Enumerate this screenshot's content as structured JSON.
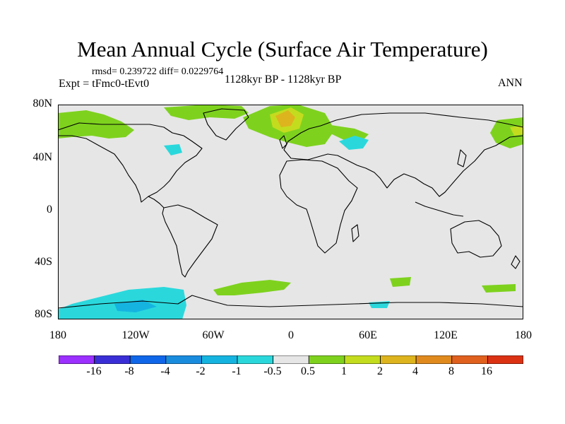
{
  "figure": {
    "title": "Mean Annual Cycle (Surface Air Temperature)",
    "stats_label": "rmsd= 0.239722 diff= 0.0229764",
    "experiment_label": "Expt = tFmc0-tEvt0",
    "period_label": "1128kyr BP - 1128kyr BP",
    "season_label": "ANN"
  },
  "map": {
    "background_color": "#e6e6e6",
    "lat_labels": [
      "80N",
      "40N",
      "0",
      "40S",
      "80S"
    ],
    "lon_labels": [
      "180",
      "120W",
      "60W",
      "0",
      "60E",
      "120E",
      "180"
    ],
    "anomaly_regions": [
      {
        "name": "alaska-yukon",
        "level": 1
      },
      {
        "name": "chukotka-bering",
        "level": 1
      },
      {
        "name": "greenland",
        "level": 1
      },
      {
        "name": "scandinavia-barents",
        "level": 1
      },
      {
        "name": "scandinavia-core",
        "level": 2
      },
      {
        "name": "scandinavia-peak",
        "level": 4
      },
      {
        "name": "siberia-west",
        "level": 1
      },
      {
        "name": "eastern-siberia",
        "level": 1
      },
      {
        "name": "eastern-siberia-core",
        "level": 2
      },
      {
        "name": "caspian-central-asia",
        "level": -1
      },
      {
        "name": "hudson-bay",
        "level": -1
      },
      {
        "name": "southern-ocean-atlantic",
        "level": 1
      },
      {
        "name": "southern-ocean-indian",
        "level": 1
      },
      {
        "name": "ross-amundsen-sea",
        "level": -1
      },
      {
        "name": "ross-sea-core",
        "level": -2
      },
      {
        "name": "weddell-coast",
        "level": -1
      }
    ]
  },
  "colorbar": {
    "colors": [
      "#9b30ff",
      "#3a2fd6",
      "#0f66e8",
      "#1a8cde",
      "#15b4e0",
      "#2ad8dc",
      "#e6e6e6",
      "#7ed21e",
      "#c4dc1e",
      "#ddb41e",
      "#e08a1e",
      "#e0601e",
      "#dc3214"
    ],
    "labels": [
      "-16",
      "-8",
      "-4",
      "-2",
      "-1",
      "-0.5",
      "0.5",
      "1",
      "2",
      "4",
      "8",
      "16"
    ]
  }
}
